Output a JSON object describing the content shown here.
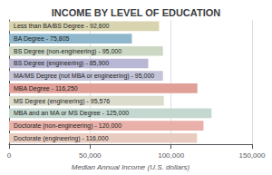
{
  "chart_data": {
    "type": "bar",
    "orientation": "horizontal",
    "title": "INCOME BY LEVEL OF EDUCATION",
    "xlabel": "Median Annual Income (U.S. dollars)",
    "categories": [
      "Less than BA/BS Degree - 92,600",
      "BA Degree - 75,805",
      "BS Degree (non-engineering) - 95,000",
      "BS Degree (engineering) - 85,900",
      "MA/MS Degree (not MBA or engineering) - 95,000",
      "MBA Degree - 116,250",
      "MS Degree (engineering) - 95,576",
      "MBA and an MA or MS Degree - 125,000",
      "Doctorate (non-engineering) - 120,000",
      "Doctorate (engineering) - 116,000"
    ],
    "values": [
      92600,
      75805,
      95000,
      85900,
      95000,
      116250,
      95576,
      125000,
      120000,
      116000
    ],
    "colors": [
      "#d8d4b0",
      "#90b8cc",
      "#ccd8c4",
      "#b8b8d4",
      "#c4c4d8",
      "#e0a098",
      "#dcdccc",
      "#c4d8d0",
      "#e8b0a8",
      "#e8ccc0"
    ],
    "xlim": [
      0,
      150000
    ],
    "xticks": [
      0,
      {
        "value": 50000,
        "label": "50,000"
      },
      {
        "value": 100000,
        "label": "100,000"
      },
      {
        "value": 150000,
        "label": "150,000"
      }
    ],
    "grid": true,
    "tick_labels": "x"
  }
}
